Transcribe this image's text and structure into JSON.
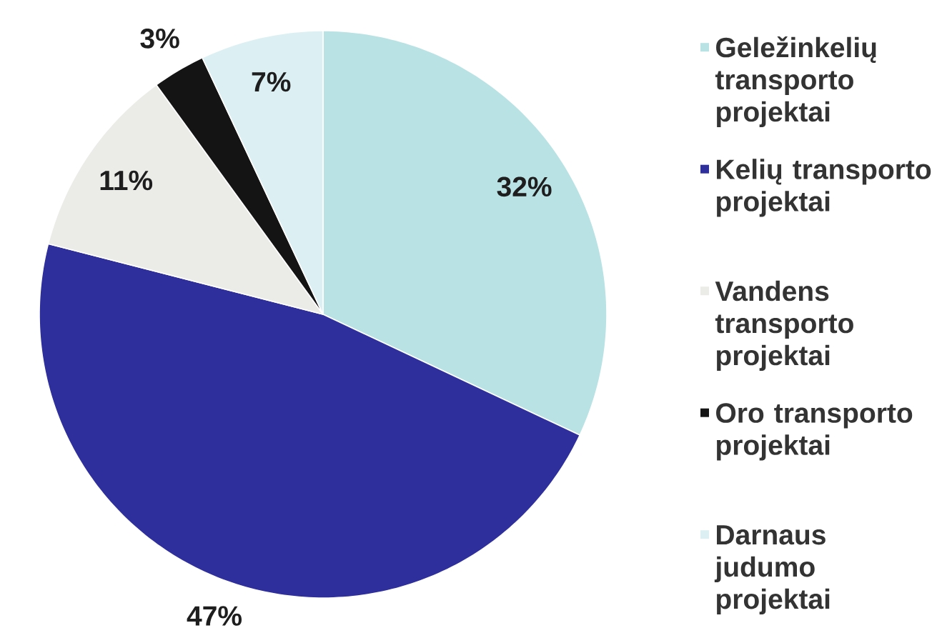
{
  "chart_data": {
    "type": "pie",
    "categories": [
      "Geležinkelių transporto projektai",
      "Kelių transporto projektai",
      "Vandens transporto projektai",
      "Oro transporto projektai",
      "Darnaus judumo projektai"
    ],
    "values": [
      32,
      47,
      11,
      3,
      7
    ],
    "colors": [
      "#b9e2e4",
      "#2e2e9c",
      "#ebebe8",
      "#141414",
      "#dcf0f3"
    ],
    "value_labels": [
      "32%",
      "47%",
      "11%",
      "3%",
      "7%"
    ],
    "legend": "right"
  }
}
